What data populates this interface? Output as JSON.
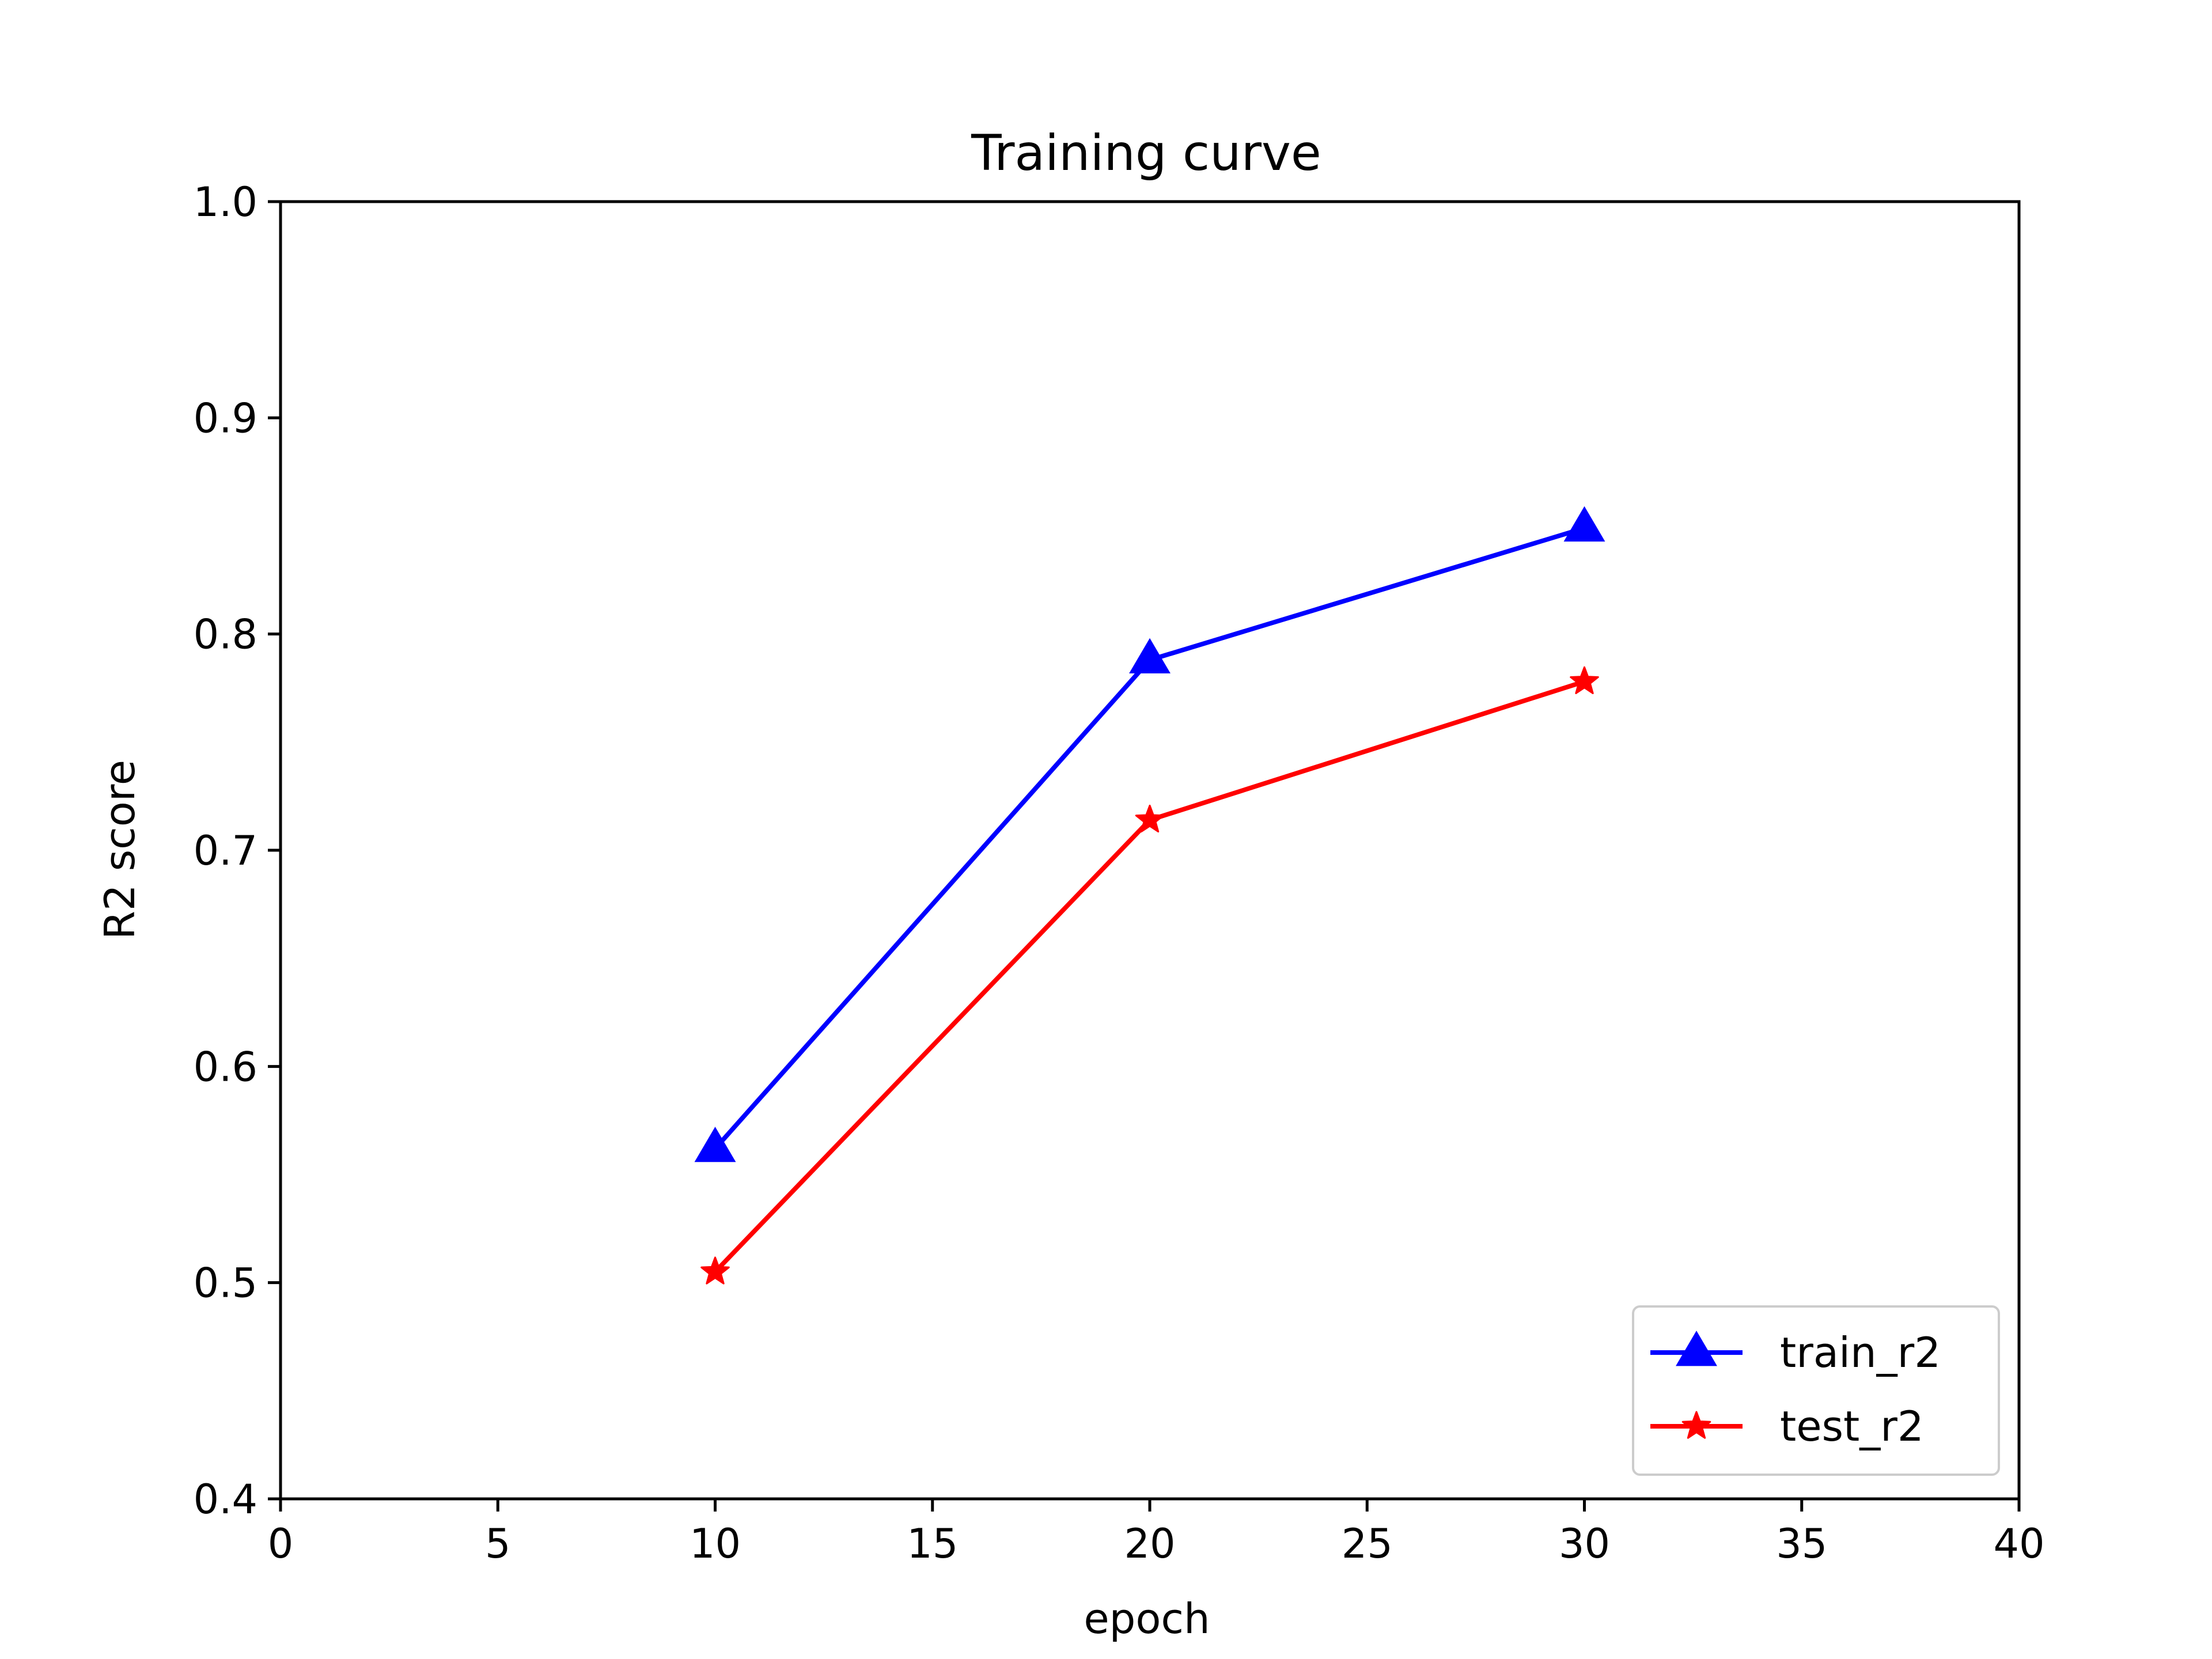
{
  "chart_data": {
    "type": "line",
    "title": "Training curve",
    "xlabel": "epoch",
    "ylabel": "R2 score",
    "xlim": [
      0,
      40
    ],
    "ylim": [
      0.4,
      1.0
    ],
    "xticks": [
      0,
      5,
      10,
      15,
      20,
      25,
      30,
      35,
      40
    ],
    "xtick_labels": [
      "0",
      "5",
      "10",
      "15",
      "20",
      "25",
      "30",
      "35",
      "40"
    ],
    "yticks": [
      0.4,
      0.5,
      0.6,
      0.7,
      0.8,
      0.9,
      1.0
    ],
    "ytick_labels": [
      "0.4",
      "0.5",
      "0.6",
      "0.7",
      "0.8",
      "0.9",
      "1.0"
    ],
    "grid": false,
    "legend_position": "lower-right",
    "series": [
      {
        "name": "train_r2",
        "color": "#0000ff",
        "marker": "triangle",
        "x": [
          10,
          20,
          30
        ],
        "y": [
          0.562,
          0.788,
          0.849
        ]
      },
      {
        "name": "test_r2",
        "color": "#ff0000",
        "marker": "star",
        "x": [
          10,
          20,
          30
        ],
        "y": [
          0.505,
          0.714,
          0.778
        ]
      }
    ]
  }
}
